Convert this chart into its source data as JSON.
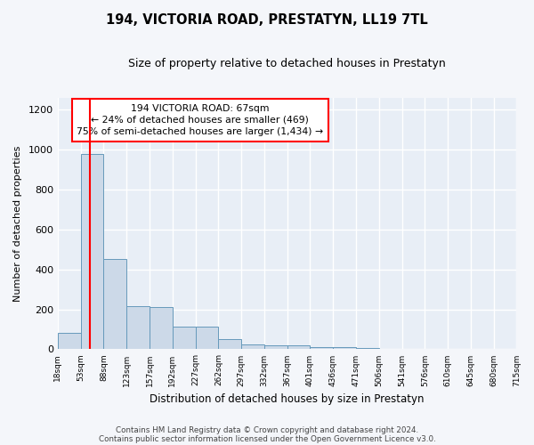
{
  "title": "194, VICTORIA ROAD, PRESTATYN, LL19 7TL",
  "subtitle": "Size of property relative to detached houses in Prestatyn",
  "xlabel": "Distribution of detached houses by size in Prestatyn",
  "ylabel": "Number of detached properties",
  "footnote1": "Contains HM Land Registry data © Crown copyright and database right 2024.",
  "footnote2": "Contains public sector information licensed under the Open Government Licence v3.0.",
  "bin_labels": [
    "18sqm",
    "53sqm",
    "88sqm",
    "123sqm",
    "157sqm",
    "192sqm",
    "227sqm",
    "262sqm",
    "297sqm",
    "332sqm",
    "367sqm",
    "401sqm",
    "436sqm",
    "471sqm",
    "506sqm",
    "541sqm",
    "576sqm",
    "610sqm",
    "645sqm",
    "680sqm",
    "715sqm"
  ],
  "bar_heights": [
    80,
    980,
    450,
    215,
    210,
    115,
    115,
    50,
    25,
    20,
    20,
    12,
    10,
    5,
    3,
    2,
    2,
    1,
    1,
    1
  ],
  "bar_color": "#ccd9e8",
  "bar_edge_color": "#6699bb",
  "ylim": [
    0,
    1260
  ],
  "yticks": [
    0,
    200,
    400,
    600,
    800,
    1000,
    1200
  ],
  "red_line_x": 1.4,
  "annotation_text": "194 VICTORIA ROAD: 67sqm\n← 24% of detached houses are smaller (469)\n75% of semi-detached houses are larger (1,434) →",
  "bg_color": "#e8eef6",
  "grid_color": "#d0d8e4",
  "fig_bg_color": "#f4f6fa"
}
